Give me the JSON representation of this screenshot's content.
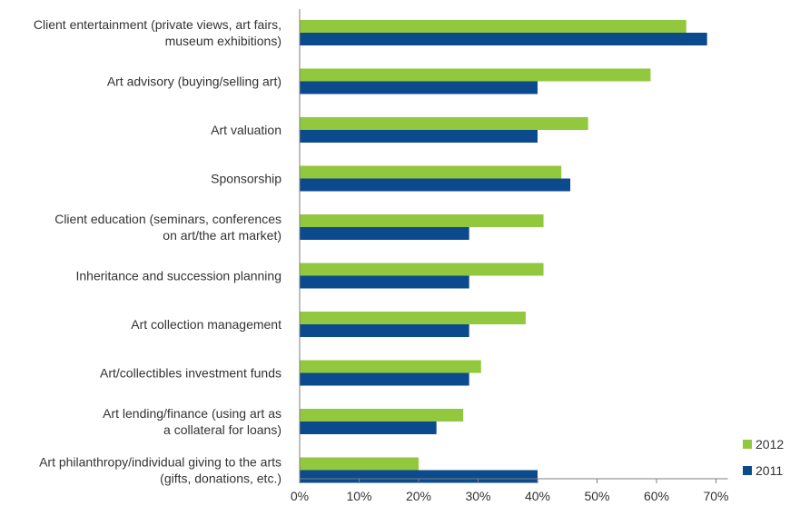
{
  "chart_data": {
    "type": "bar",
    "orientation": "horizontal",
    "categories": [
      [
        "Client entertainment (private views, art fairs,",
        "museum exhibitions)"
      ],
      [
        "Art advisory (buying/selling art)"
      ],
      [
        "Art valuation"
      ],
      [
        "Sponsorship"
      ],
      [
        "Client education (seminars, conferences",
        "on art/the art market)"
      ],
      [
        "Inheritance and succession planning"
      ],
      [
        "Art collection management"
      ],
      [
        "Art/collectibles investment funds"
      ],
      [
        "Art lending/finance (using art as",
        "a collateral for loans)"
      ],
      [
        "Art philanthropy/individual giving to the arts",
        "(gifts, donations, etc.)"
      ]
    ],
    "series": [
      {
        "name": "2012",
        "color": "#92c83e",
        "values": [
          65,
          59,
          48.5,
          44,
          41,
          41,
          38,
          30.5,
          27.5,
          20
        ]
      },
      {
        "name": "2011",
        "color": "#0c4a8e",
        "values": [
          68.5,
          40,
          40,
          45.5,
          28.5,
          28.5,
          28.5,
          28.5,
          23,
          40
        ]
      }
    ],
    "xlim": [
      0,
      72
    ],
    "xticks": [
      0,
      10,
      20,
      30,
      40,
      50,
      60,
      70
    ],
    "tick_format": "percent",
    "legend_position": "bottom-right",
    "grid": false
  }
}
